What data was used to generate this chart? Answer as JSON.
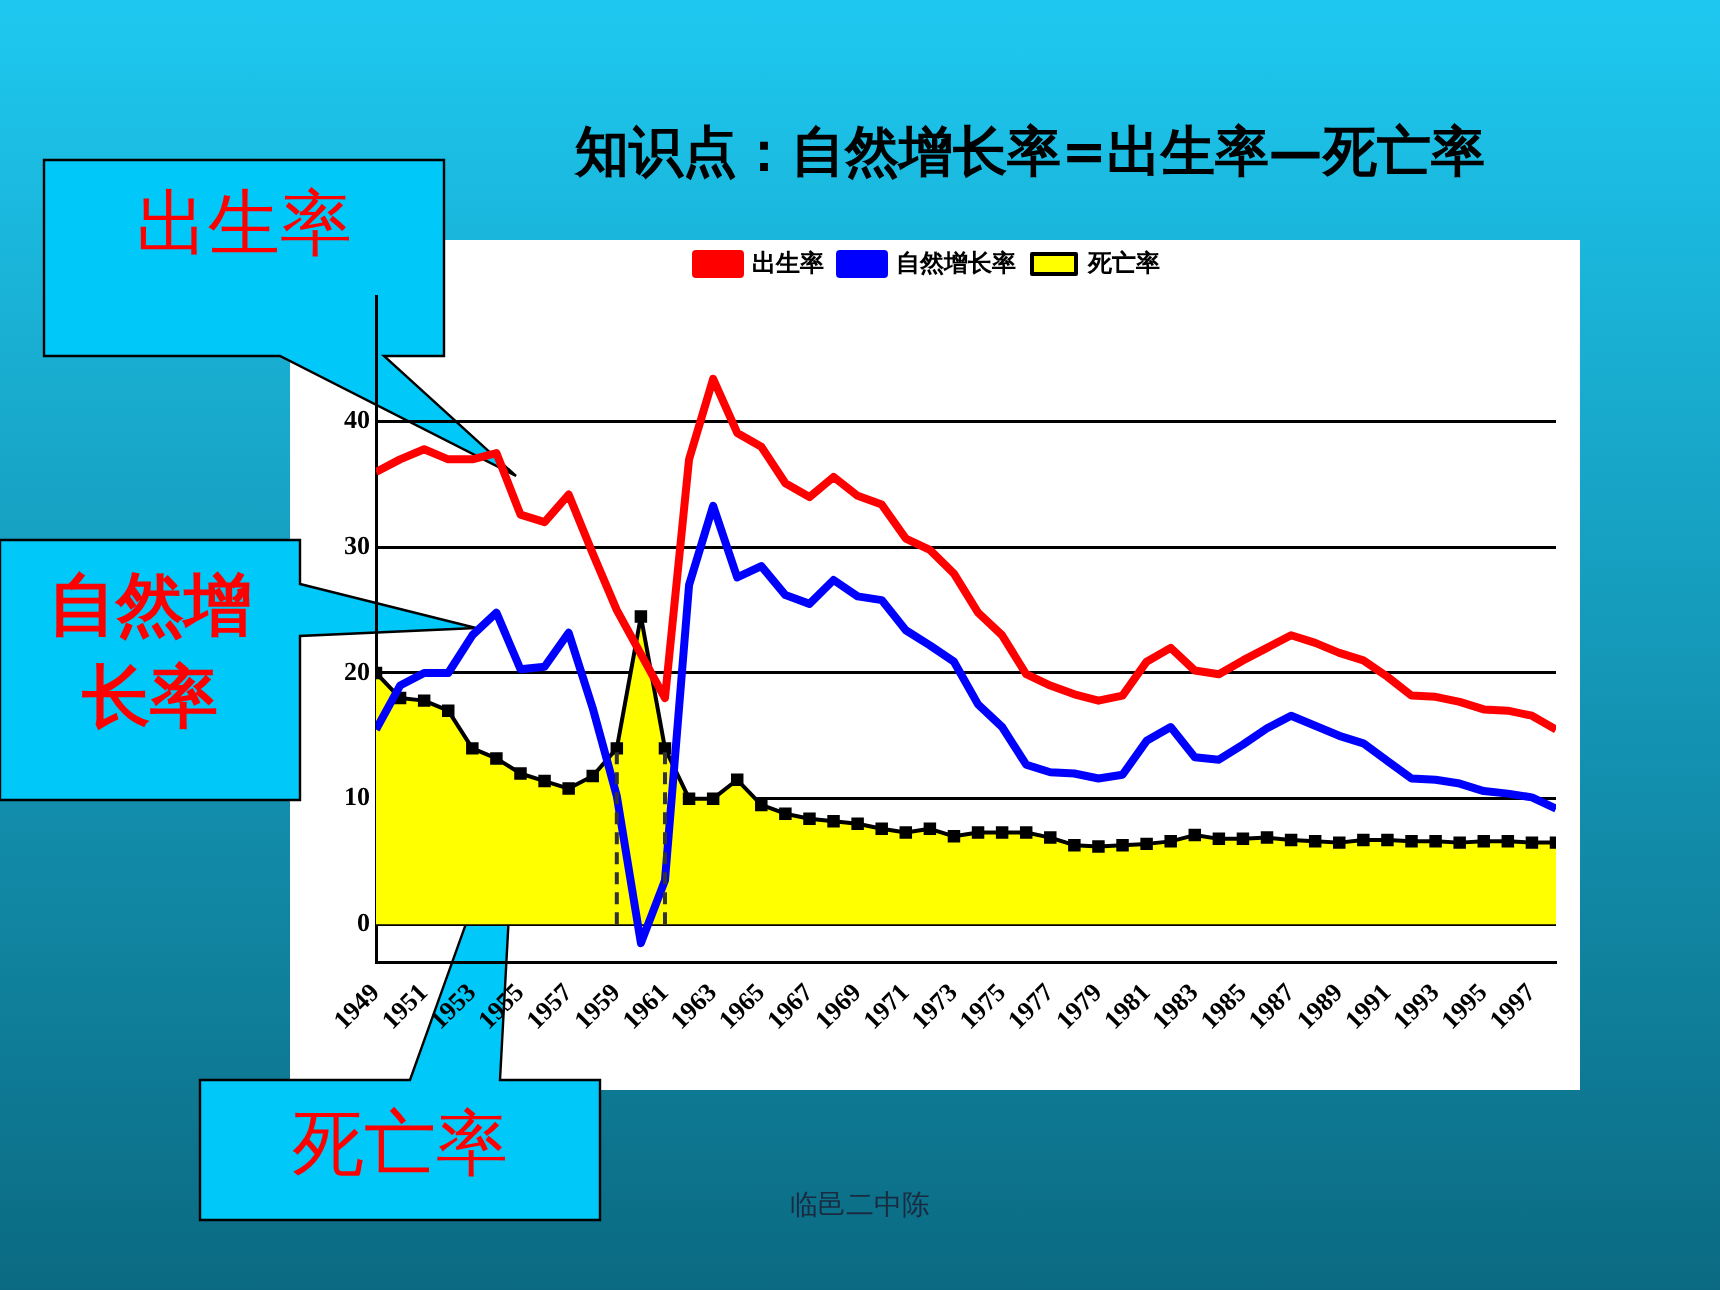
{
  "chart_data": {
    "type": "line",
    "title": "知识点：自然增长率=出生率—死亡率",
    "x": [
      1949,
      1950,
      1951,
      1952,
      1953,
      1954,
      1955,
      1956,
      1957,
      1958,
      1959,
      1960,
      1961,
      1962,
      1963,
      1964,
      1965,
      1966,
      1967,
      1968,
      1969,
      1970,
      1971,
      1972,
      1973,
      1974,
      1975,
      1976,
      1977,
      1978,
      1979,
      1980,
      1981,
      1982,
      1983,
      1984,
      1985,
      1986,
      1987,
      1988,
      1989,
      1990,
      1991,
      1992,
      1993,
      1994,
      1995,
      1996,
      1997,
      1998
    ],
    "series": [
      {
        "name": "出生率",
        "color": "#ff0000",
        "values": [
          36,
          37,
          37.8,
          37,
          37,
          37.5,
          32.6,
          32,
          34.2,
          29.5,
          25,
          21.5,
          18,
          37,
          43.4,
          39.1,
          38,
          35.1,
          34,
          35.6,
          34.1,
          33.4,
          30.7,
          29.8,
          27.9,
          24.8,
          23,
          19.9,
          19,
          18.3,
          17.8,
          18.2,
          20.9,
          22,
          20.2,
          19.9,
          21,
          22,
          23,
          22.4,
          21.6,
          21,
          19.7,
          18.2,
          18.1,
          17.7,
          17.1,
          17,
          16.6,
          15.5
        ]
      },
      {
        "name": "死亡率",
        "type": "area",
        "marker": "square",
        "color": "#ffff00",
        "values": [
          20,
          18,
          17.8,
          17,
          14,
          13.2,
          12,
          11.4,
          10.8,
          11.8,
          14,
          24.5,
          14,
          10,
          10,
          11.5,
          9.5,
          8.8,
          8.4,
          8.2,
          8,
          7.6,
          7.3,
          7.6,
          7,
          7.3,
          7.3,
          7.3,
          6.9,
          6.3,
          6.2,
          6.3,
          6.4,
          6.6,
          7.1,
          6.8,
          6.8,
          6.9,
          6.7,
          6.6,
          6.5,
          6.7,
          6.7,
          6.6,
          6.6,
          6.5,
          6.6,
          6.6,
          6.5,
          6.5
        ]
      },
      {
        "name": "自然增长率",
        "color": "#0000ff",
        "values": [
          15.5,
          19,
          20,
          20,
          23,
          24.8,
          20.3,
          20.5,
          23.2,
          17.2,
          10.2,
          -1.5,
          3.5,
          27,
          33.3,
          27.6,
          28.5,
          26.2,
          25.5,
          27.4,
          26.1,
          25.8,
          23.4,
          22.2,
          20.9,
          17.5,
          15.7,
          12.7,
          12.1,
          12,
          11.6,
          11.9,
          14.6,
          15.7,
          13.3,
          13.1,
          14.3,
          15.6,
          16.6,
          15.8,
          15,
          14.4,
          13,
          11.6,
          11.5,
          11.2,
          10.6,
          10.4,
          10.1,
          9.2
        ]
      }
    ],
    "xlim": [
      1949,
      1998
    ],
    "xticks": [
      1949,
      1951,
      1953,
      1955,
      1957,
      1959,
      1961,
      1963,
      1965,
      1967,
      1969,
      1971,
      1973,
      1975,
      1977,
      1979,
      1981,
      1983,
      1985,
      1987,
      1989,
      1991,
      1993,
      1995,
      1997
    ],
    "ylim": [
      -3,
      50
    ],
    "yticks": [
      0,
      10,
      20,
      30,
      40
    ],
    "grid": "y",
    "legend": "top",
    "marker": "none",
    "ref_lines": [
      {
        "axis": "x",
        "value": 1959,
        "color": "#333333",
        "line_style": "dashed"
      },
      {
        "axis": "x",
        "value": 1961,
        "color": "#333333",
        "line_style": "dashed"
      }
    ],
    "annotations": [
      "出生率",
      "自然增长率",
      "死亡率",
      "临邑二中陈"
    ]
  }
}
